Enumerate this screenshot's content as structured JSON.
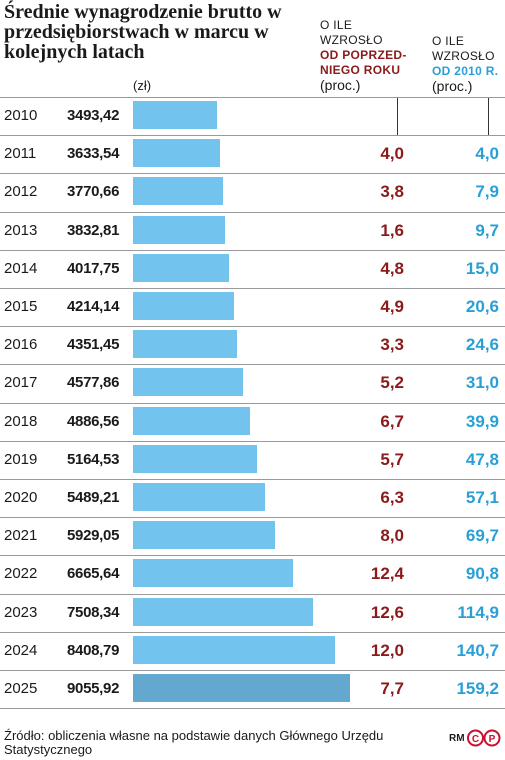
{
  "title": "Średnie wynagrodzenie brutto w przedsiębiorstwach w marcu w kolejnych latach",
  "unit_label": "(zł)",
  "col_growth_prev": {
    "line1": "O ILE",
    "line2": "WZROSŁO",
    "em1": "OD POPRZED-",
    "em2": "NIEGO ROKU",
    "unit": "(proc.)"
  },
  "col_growth_2010": {
    "line1": "O ILE",
    "line2": "WZROSŁO",
    "em": "OD 2010 R.",
    "unit": "(proc.)"
  },
  "chart_data": {
    "type": "bar",
    "orientation": "horizontal",
    "title": "Średnie wynagrodzenie brutto w przedsiębiorstwach w marcu w kolejnych latach",
    "ylabel": "(zł)",
    "xlim": [
      0,
      9055.92
    ],
    "grid": false,
    "highlight": "2025",
    "categories": [
      "2010",
      "2011",
      "2012",
      "2013",
      "2014",
      "2015",
      "2016",
      "2017",
      "2018",
      "2019",
      "2020",
      "2021",
      "2022",
      "2023",
      "2024",
      "2025"
    ],
    "values": [
      "3493,42",
      "3633,54",
      "3770,66",
      "3832,81",
      "4017,75",
      "4214,14",
      "4351,45",
      "4577,86",
      "4886,56",
      "5164,53",
      "5489,21",
      "5929,05",
      "6665,64",
      "7508,34",
      "8408,79",
      "9055,92"
    ],
    "growth_prev_year": [
      "",
      "4,0",
      "3,8",
      "1,6",
      "4,8",
      "4,9",
      "3,3",
      "5,2",
      "6,7",
      "5,7",
      "6,3",
      "8,0",
      "12,4",
      "12,6",
      "12,0",
      "7,7"
    ],
    "growth_since_2010": [
      "",
      "4,0",
      "7,9",
      "9,7",
      "15,0",
      "20,6",
      "24,6",
      "31,0",
      "39,9",
      "47,8",
      "57,1",
      "69,7",
      "90,8",
      "114,9",
      "140,7",
      "159,2"
    ],
    "colors": {
      "bar": "#72c4ee",
      "bar_highlight": "#64a8cf",
      "growth_prev": "#8b1a1a",
      "growth_2010": "#2a9fd6"
    }
  },
  "source": "Źródło: obliczenia własne na podstawie danych Głównego Urzędu Statystycznego",
  "credit": "RM",
  "logo_icon": "copyright-p-icon"
}
